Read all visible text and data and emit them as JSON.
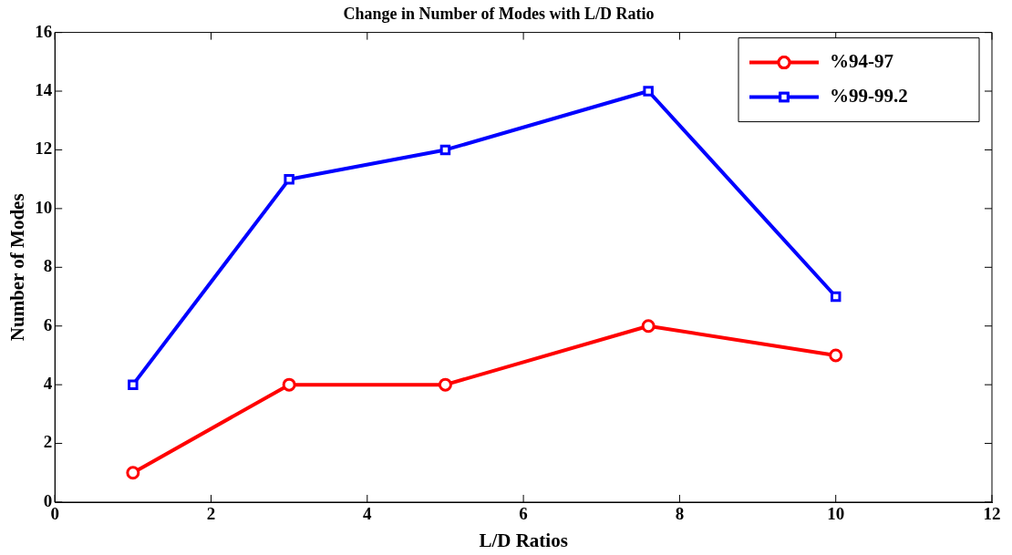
{
  "chart_data": {
    "type": "line",
    "title": "Change in Number of Modes with L/D Ratio",
    "xlabel": "L/D Ratios",
    "ylabel": "Number of Modes",
    "x": [
      1,
      3,
      5,
      7.6,
      10
    ],
    "series": [
      {
        "name": "%94-97",
        "color": "#ff0000",
        "marker": "circle",
        "values": [
          1,
          4,
          4,
          6,
          5
        ]
      },
      {
        "name": "%99-99.2",
        "color": "#0000ff",
        "marker": "square",
        "values": [
          4,
          11,
          12,
          14,
          7
        ]
      }
    ],
    "xlim": [
      0,
      12
    ],
    "xticks": [
      0,
      2,
      4,
      6,
      8,
      10,
      12
    ],
    "ylim": [
      0,
      16
    ],
    "yticks": [
      0,
      2,
      4,
      6,
      8,
      10,
      12,
      14,
      16
    ],
    "grid": false,
    "legend": "top right",
    "line_style": "solid"
  }
}
